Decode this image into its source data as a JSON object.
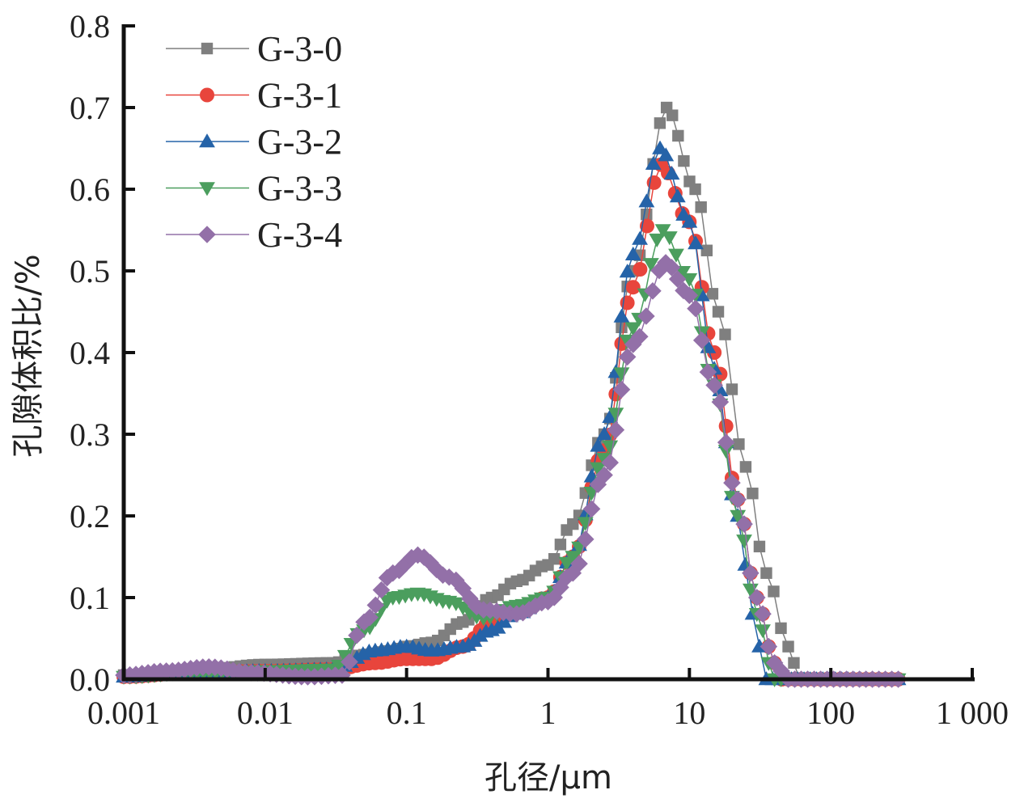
{
  "chart_data": {
    "type": "line",
    "title": "",
    "xlabel": "孔径/μm",
    "ylabel": "孔隙体积比/%",
    "xscale": "log",
    "xlim": [
      0.001,
      1000
    ],
    "ylim": [
      0.0,
      0.8
    ],
    "xticks": [
      0.001,
      0.01,
      0.1,
      1,
      10,
      100,
      1000
    ],
    "xtick_labels": [
      "0.001",
      "0.01",
      "0.1",
      "1",
      "10",
      "100",
      "1 000"
    ],
    "yticks": [
      0.0,
      0.1,
      0.2,
      0.3,
      0.4,
      0.5,
      0.6,
      0.7,
      0.8
    ],
    "ytick_labels": [
      "0.0",
      "0.1",
      "0.2",
      "0.3",
      "0.4",
      "0.5",
      "0.6",
      "0.7",
      "0.8"
    ],
    "grid": false,
    "legend_position": "top-left",
    "series": [
      {
        "name": "G-3-0",
        "color": "#7f7f7f",
        "marker": "square",
        "points": [
          [
            0.001,
            0.005
          ],
          [
            0.003,
            0.01
          ],
          [
            0.01,
            0.018
          ],
          [
            0.03,
            0.02
          ],
          [
            0.05,
            0.03
          ],
          [
            0.08,
            0.035
          ],
          [
            0.1,
            0.04
          ],
          [
            0.15,
            0.045
          ],
          [
            0.25,
            0.07
          ],
          [
            0.4,
            0.1
          ],
          [
            0.6,
            0.12
          ],
          [
            1.0,
            0.14
          ],
          [
            1.5,
            0.19
          ],
          [
            2.5,
            0.3
          ],
          [
            4,
            0.5
          ],
          [
            6.9,
            0.7
          ],
          [
            11,
            0.6
          ],
          [
            16,
            0.45
          ],
          [
            25,
            0.26
          ],
          [
            35,
            0.13
          ],
          [
            50,
            0.04
          ],
          [
            60,
            0.0
          ],
          [
            300,
            0.0
          ]
        ]
      },
      {
        "name": "G-3-1",
        "color": "#e8453c",
        "marker": "circle",
        "points": [
          [
            0.001,
            0.003
          ],
          [
            0.003,
            0.008
          ],
          [
            0.01,
            0.01
          ],
          [
            0.03,
            0.012
          ],
          [
            0.06,
            0.02
          ],
          [
            0.1,
            0.025
          ],
          [
            0.15,
            0.025
          ],
          [
            0.25,
            0.04
          ],
          [
            0.4,
            0.07
          ],
          [
            0.6,
            0.085
          ],
          [
            1.0,
            0.1
          ],
          [
            1.5,
            0.15
          ],
          [
            2.5,
            0.28
          ],
          [
            4,
            0.48
          ],
          [
            6.3,
            0.63
          ],
          [
            10,
            0.56
          ],
          [
            15,
            0.4
          ],
          [
            22,
            0.22
          ],
          [
            30,
            0.1
          ],
          [
            40,
            0.02
          ],
          [
            45,
            0.0
          ],
          [
            300,
            0.0
          ]
        ]
      },
      {
        "name": "G-3-2",
        "color": "#2563a8",
        "marker": "triangle-up",
        "points": [
          [
            0.001,
            0.003
          ],
          [
            0.003,
            0.008
          ],
          [
            0.01,
            0.01
          ],
          [
            0.03,
            0.012
          ],
          [
            0.06,
            0.035
          ],
          [
            0.1,
            0.04
          ],
          [
            0.15,
            0.035
          ],
          [
            0.25,
            0.04
          ],
          [
            0.4,
            0.06
          ],
          [
            0.6,
            0.08
          ],
          [
            1.0,
            0.1
          ],
          [
            1.5,
            0.15
          ],
          [
            2.5,
            0.3
          ],
          [
            4,
            0.52
          ],
          [
            6.2,
            0.65
          ],
          [
            10,
            0.56
          ],
          [
            15,
            0.38
          ],
          [
            22,
            0.2
          ],
          [
            28,
            0.08
          ],
          [
            35,
            0.0
          ],
          [
            300,
            0.0
          ]
        ]
      },
      {
        "name": "G-3-3",
        "color": "#4b9e5e",
        "marker": "triangle-down",
        "points": [
          [
            0.001,
            0.003
          ],
          [
            0.003,
            0.008
          ],
          [
            0.01,
            0.01
          ],
          [
            0.03,
            0.012
          ],
          [
            0.05,
            0.06
          ],
          [
            0.08,
            0.1
          ],
          [
            0.12,
            0.105
          ],
          [
            0.2,
            0.095
          ],
          [
            0.35,
            0.075
          ],
          [
            0.6,
            0.09
          ],
          [
            1.0,
            0.1
          ],
          [
            1.5,
            0.15
          ],
          [
            2.5,
            0.27
          ],
          [
            4,
            0.43
          ],
          [
            6.5,
            0.55
          ],
          [
            10,
            0.49
          ],
          [
            15,
            0.36
          ],
          [
            22,
            0.2
          ],
          [
            30,
            0.08
          ],
          [
            40,
            0.0
          ],
          [
            300,
            0.0
          ]
        ]
      },
      {
        "name": "G-3-4",
        "color": "#9370a8",
        "marker": "diamond",
        "points": [
          [
            0.001,
            0.005
          ],
          [
            0.002,
            0.01
          ],
          [
            0.004,
            0.015
          ],
          [
            0.008,
            0.008
          ],
          [
            0.02,
            0.003
          ],
          [
            0.035,
            0.005
          ],
          [
            0.05,
            0.07
          ],
          [
            0.08,
            0.13
          ],
          [
            0.12,
            0.152
          ],
          [
            0.2,
            0.125
          ],
          [
            0.35,
            0.085
          ],
          [
            0.6,
            0.08
          ],
          [
            1.0,
            0.095
          ],
          [
            1.5,
            0.13
          ],
          [
            2.5,
            0.25
          ],
          [
            4,
            0.41
          ],
          [
            6.8,
            0.51
          ],
          [
            10,
            0.47
          ],
          [
            15,
            0.36
          ],
          [
            22,
            0.22
          ],
          [
            30,
            0.1
          ],
          [
            40,
            0.02
          ],
          [
            50,
            0.0
          ],
          [
            300,
            0.0
          ]
        ]
      }
    ]
  }
}
